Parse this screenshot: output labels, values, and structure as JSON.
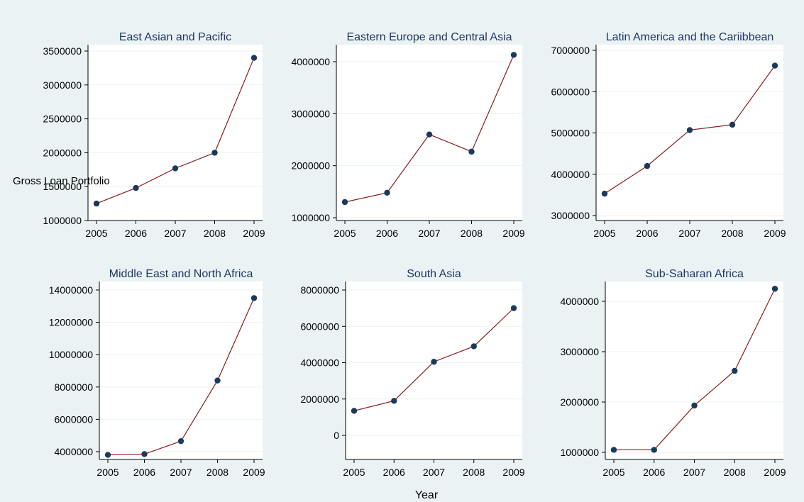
{
  "figure": {
    "ylabel": "Gross Loan Portfolio",
    "xlabel": "Year",
    "background": "#eaf2f3",
    "plot_background": "#ffffff",
    "line_color": "#8b1a1a",
    "marker_color": "#1a3a5c",
    "title_color": "#1f3864",
    "grid_color": "#eaf2f3"
  },
  "chart_data": [
    {
      "type": "line",
      "title": "East Asian and Pacific",
      "x": [
        2005,
        2006,
        2007,
        2008,
        2009
      ],
      "y": [
        1250000,
        1480000,
        1770000,
        2000000,
        3400000
      ],
      "yticks": [
        1000000,
        1500000,
        2000000,
        2500000,
        3000000,
        3500000
      ],
      "ylim": [
        1000000,
        3500000
      ],
      "grid": true
    },
    {
      "type": "line",
      "title": "Eastern Europe and Central Asia",
      "x": [
        2005,
        2006,
        2007,
        2008,
        2009
      ],
      "y": [
        1300000,
        1480000,
        2600000,
        2270000,
        4130000
      ],
      "yticks": [
        1000000,
        2000000,
        3000000,
        4000000
      ],
      "ylim": [
        1000000,
        4000000
      ],
      "grid": true
    },
    {
      "type": "line",
      "title": "Latin America and the Cariibbean",
      "x": [
        2005,
        2006,
        2007,
        2008,
        2009
      ],
      "y": [
        3530000,
        4200000,
        5070000,
        5200000,
        6630000
      ],
      "yticks": [
        3000000,
        4000000,
        5000000,
        6000000,
        7000000
      ],
      "ylim": [
        3000000,
        7000000
      ],
      "grid": true
    },
    {
      "type": "line",
      "title": "Middle East and North Africa",
      "x": [
        2005,
        2006,
        2007,
        2008,
        2009
      ],
      "y": [
        3800000,
        3850000,
        4650000,
        8400000,
        13500000
      ],
      "yticks": [
        4000000,
        6000000,
        8000000,
        10000000,
        12000000,
        14000000
      ],
      "ylim": [
        4000000,
        14000000
      ],
      "grid": true
    },
    {
      "type": "line",
      "title": "South Asia",
      "x": [
        2005,
        2006,
        2007,
        2008,
        2009
      ],
      "y": [
        1350000,
        1900000,
        4050000,
        4900000,
        7000000
      ],
      "yticks": [
        0,
        2000000,
        4000000,
        6000000,
        8000000
      ],
      "ylim": [
        0,
        8000000
      ],
      "grid": true
    },
    {
      "type": "line",
      "title": "Sub-Saharan Africa",
      "x": [
        2005,
        2006,
        2007,
        2008,
        2009
      ],
      "y": [
        1050000,
        1050000,
        1930000,
        2620000,
        4250000
      ],
      "yticks": [
        1000000,
        2000000,
        3000000,
        4000000
      ],
      "ylim": [
        1000000,
        4000000
      ],
      "grid": true
    }
  ]
}
